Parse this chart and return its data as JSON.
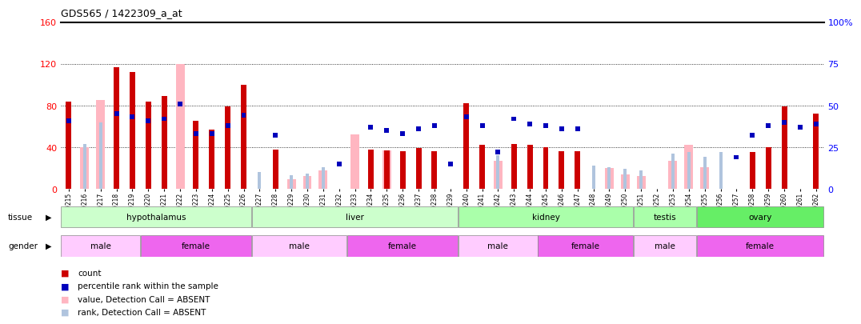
{
  "title": "GDS565 / 1422309_a_at",
  "samples": [
    "GSM19215",
    "GSM19216",
    "GSM19217",
    "GSM19218",
    "GSM19219",
    "GSM19220",
    "GSM19221",
    "GSM19222",
    "GSM19223",
    "GSM19224",
    "GSM19225",
    "GSM19226",
    "GSM19227",
    "GSM19228",
    "GSM19229",
    "GSM19230",
    "GSM19231",
    "GSM19232",
    "GSM19233",
    "GSM19234",
    "GSM19235",
    "GSM19236",
    "GSM19237",
    "GSM19238",
    "GSM19239",
    "GSM19240",
    "GSM19241",
    "GSM19242",
    "GSM19243",
    "GSM19244",
    "GSM19245",
    "GSM19246",
    "GSM19247",
    "GSM19248",
    "GSM19249",
    "GSM19250",
    "GSM19251",
    "GSM19252",
    "GSM19253",
    "GSM19254",
    "GSM19255",
    "GSM19256",
    "GSM19257",
    "GSM19258",
    "GSM19259",
    "GSM19260",
    "GSM19261",
    "GSM19262"
  ],
  "count": [
    84,
    0,
    0,
    117,
    112,
    84,
    89,
    0,
    65,
    57,
    79,
    100,
    0,
    38,
    0,
    0,
    0,
    0,
    0,
    38,
    37,
    36,
    39,
    36,
    0,
    82,
    42,
    0,
    43,
    42,
    40,
    36,
    36,
    0,
    0,
    0,
    0,
    0,
    0,
    0,
    0,
    0,
    0,
    35,
    40,
    79,
    0,
    72
  ],
  "percentile_rank": [
    41,
    0,
    0,
    45,
    43,
    41,
    42,
    51,
    33,
    33,
    38,
    44,
    0,
    32,
    0,
    0,
    0,
    15,
    0,
    37,
    35,
    33,
    36,
    38,
    15,
    43,
    38,
    22,
    42,
    39,
    38,
    36,
    36,
    0,
    0,
    0,
    0,
    0,
    0,
    0,
    0,
    0,
    19,
    32,
    38,
    40,
    37,
    39
  ],
  "absent_value": [
    0,
    40,
    85,
    0,
    0,
    0,
    0,
    120,
    0,
    0,
    0,
    0,
    0,
    0,
    9,
    12,
    18,
    0,
    52,
    0,
    37,
    0,
    0,
    0,
    0,
    0,
    0,
    27,
    0,
    0,
    0,
    0,
    0,
    0,
    20,
    14,
    12,
    0,
    27,
    42,
    21,
    0,
    0,
    0,
    0,
    0,
    0,
    0
  ],
  "absent_rank": [
    0,
    27,
    40,
    0,
    0,
    0,
    0,
    0,
    0,
    0,
    0,
    0,
    10,
    0,
    8,
    9,
    13,
    0,
    0,
    0,
    0,
    0,
    0,
    0,
    0,
    0,
    0,
    20,
    0,
    0,
    0,
    0,
    0,
    14,
    13,
    12,
    11,
    0,
    21,
    22,
    19,
    22,
    0,
    0,
    0,
    0,
    0,
    0
  ],
  "tissue_groups": [
    {
      "label": "hypothalamus",
      "start": 0,
      "end": 11,
      "color": "#ccffcc"
    },
    {
      "label": "liver",
      "start": 12,
      "end": 24,
      "color": "#ccffcc"
    },
    {
      "label": "kidney",
      "start": 25,
      "end": 35,
      "color": "#aaffaa"
    },
    {
      "label": "testis",
      "start": 36,
      "end": 39,
      "color": "#aaffaa"
    },
    {
      "label": "ovary",
      "start": 40,
      "end": 47,
      "color": "#66ee66"
    }
  ],
  "gender_groups": [
    {
      "label": "male",
      "start": 0,
      "end": 4,
      "color": "#ffccff"
    },
    {
      "label": "female",
      "start": 5,
      "end": 11,
      "color": "#ee66ee"
    },
    {
      "label": "male",
      "start": 12,
      "end": 17,
      "color": "#ffccff"
    },
    {
      "label": "female",
      "start": 18,
      "end": 24,
      "color": "#ee66ee"
    },
    {
      "label": "male",
      "start": 25,
      "end": 29,
      "color": "#ffccff"
    },
    {
      "label": "female",
      "start": 30,
      "end": 35,
      "color": "#ee66ee"
    },
    {
      "label": "male",
      "start": 36,
      "end": 39,
      "color": "#ffccff"
    },
    {
      "label": "female",
      "start": 40,
      "end": 47,
      "color": "#ee66ee"
    }
  ],
  "ylim_left": [
    0,
    160
  ],
  "ylim_right": [
    0,
    100
  ],
  "yticks_left": [
    0,
    40,
    80,
    120,
    160
  ],
  "yticks_right": [
    0,
    25,
    50,
    75,
    100
  ],
  "color_count": "#cc0000",
  "color_percentile": "#0000bb",
  "color_absent_value": "#ffb6c1",
  "color_absent_rank": "#b0c4de",
  "legend_items": [
    {
      "color": "#cc0000",
      "label": "count"
    },
    {
      "color": "#0000bb",
      "label": "percentile rank within the sample"
    },
    {
      "color": "#ffb6c1",
      "label": "value, Detection Call = ABSENT"
    },
    {
      "color": "#b0c4de",
      "label": "rank, Detection Call = ABSENT"
    }
  ]
}
